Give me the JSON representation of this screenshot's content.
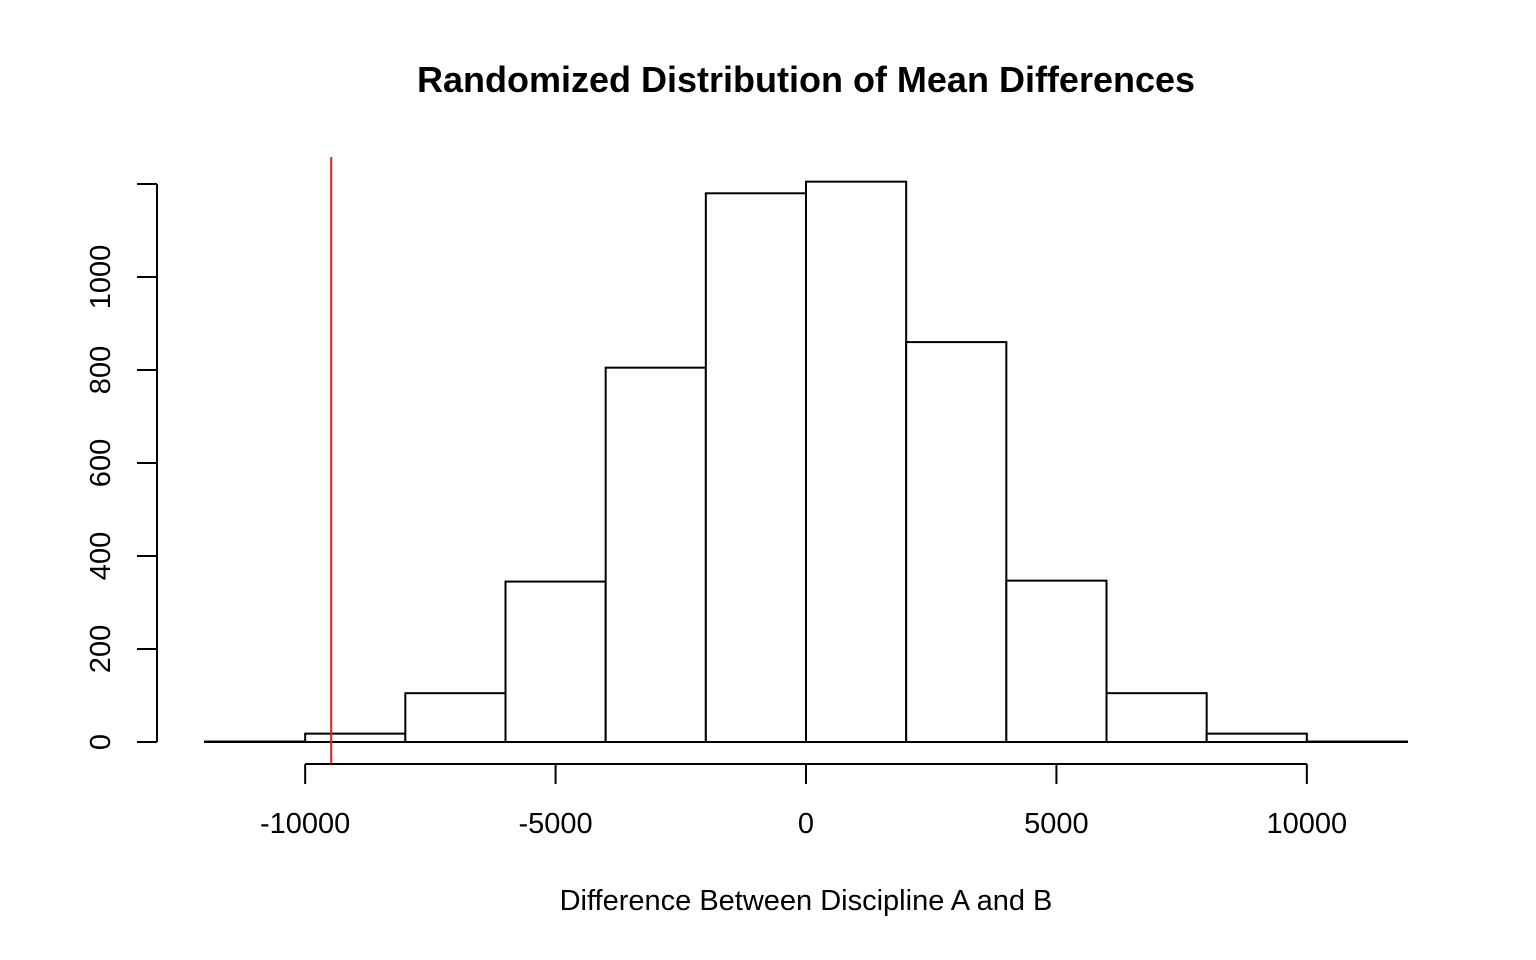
{
  "chart_data": {
    "type": "bar",
    "title": "Randomized Distribution of Mean Differences",
    "xlabel": "Difference Between Discipline A and B",
    "ylabel": "",
    "bin_edges": [
      -12000,
      -10000,
      -8000,
      -6000,
      -4000,
      -2000,
      0,
      2000,
      4000,
      6000,
      8000,
      10000,
      12000
    ],
    "values": [
      1,
      18,
      105,
      345,
      805,
      1180,
      1205,
      860,
      347,
      105,
      18,
      1
    ],
    "xlim": [
      -12000,
      12000
    ],
    "ylim": [
      0,
      1200
    ],
    "x_ticks": [
      -10000,
      -5000,
      0,
      5000,
      10000
    ],
    "x_tick_labels": [
      "-10000",
      "-5000",
      "0",
      "5000",
      "10000"
    ],
    "y_ticks": [
      0,
      200,
      400,
      600,
      800,
      1000
    ],
    "y_tick_labels": [
      "0",
      "200",
      "400",
      "600",
      "800",
      "1000"
    ],
    "reference_line": {
      "x": -9480,
      "color": "#dd2222"
    },
    "grid": false,
    "bar_fill": "#ffffff",
    "bar_stroke": "#000000"
  }
}
